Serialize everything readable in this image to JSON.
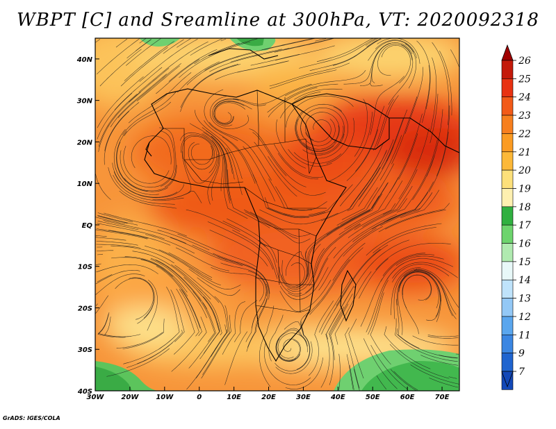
{
  "title": "WBPT [C] and Sreamline at 300hPa, VT: 2020092318",
  "credit": "GrADS: IGES/COLA",
  "map": {
    "lon_range": [
      -30,
      75
    ],
    "lat_range": [
      -40,
      45
    ],
    "lon_ticks": [
      "30W",
      "20W",
      "10W",
      "0",
      "10E",
      "20E",
      "30E",
      "40E",
      "50E",
      "60E",
      "70E"
    ],
    "lat_ticks": [
      "40S",
      "30S",
      "20S",
      "10S",
      "EQ",
      "10N",
      "20N",
      "30N",
      "40N"
    ]
  },
  "colorbar": {
    "labels": [
      "26",
      "25",
      "24",
      "23",
      "22",
      "21",
      "20",
      "19",
      "18",
      "17",
      "16",
      "15",
      "14",
      "13",
      "12",
      "11",
      "9",
      "7"
    ],
    "colors": [
      "#a00000",
      "#c41a0a",
      "#e83212",
      "#f25a18",
      "#f77f1e",
      "#fb9b22",
      "#fcb838",
      "#fde07a",
      "#fef0b0",
      "#30b040",
      "#6dd46d",
      "#b0eab0",
      "#e8f8f8",
      "#bfe3fb",
      "#93c8f6",
      "#5aa6ee",
      "#3b86e2",
      "#1f64cf",
      "#1248b8"
    ]
  }
}
